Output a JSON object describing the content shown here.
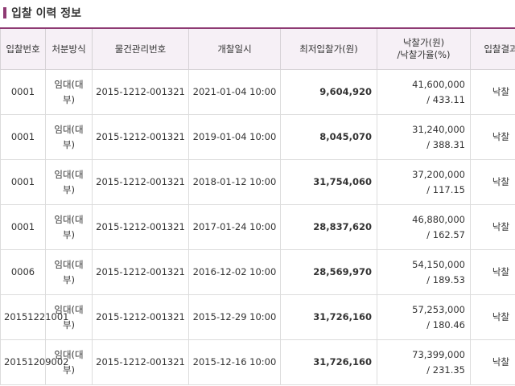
{
  "section": {
    "title": "입찰 이력 정보"
  },
  "table": {
    "headers": {
      "bid_no": "입찰번호",
      "disposal": "처분방식",
      "item_no": "물건관리번호",
      "open_date": "개찰일시",
      "min_price": "최저입찰가(원)",
      "win_price_line1": "낙찰가(원)",
      "win_price_line2": "/낙찰가율(%)",
      "result": "입찰결과"
    },
    "rows": [
      {
        "bid_no": "0001",
        "disposal": "임대(대부)",
        "item_no": "2015-1212-001321",
        "open_date": "2021-01-04 10:00",
        "min_price": "9,604,920",
        "win_price": "41,600,000",
        "win_rate": "/ 433.11",
        "result": "낙찰"
      },
      {
        "bid_no": "0001",
        "disposal": "임대(대부)",
        "item_no": "2015-1212-001321",
        "open_date": "2019-01-04 10:00",
        "min_price": "8,045,070",
        "win_price": "31,240,000",
        "win_rate": "/ 388.31",
        "result": "낙찰"
      },
      {
        "bid_no": "0001",
        "disposal": "임대(대부)",
        "item_no": "2015-1212-001321",
        "open_date": "2018-01-12 10:00",
        "min_price": "31,754,060",
        "win_price": "37,200,000",
        "win_rate": "/ 117.15",
        "result": "낙찰"
      },
      {
        "bid_no": "0001",
        "disposal": "임대(대부)",
        "item_no": "2015-1212-001321",
        "open_date": "2017-01-24 10:00",
        "min_price": "28,837,620",
        "win_price": "46,880,000",
        "win_rate": "/ 162.57",
        "result": "낙찰"
      },
      {
        "bid_no": "0006",
        "disposal": "임대(대부)",
        "item_no": "2015-1212-001321",
        "open_date": "2016-12-02 10:00",
        "min_price": "28,569,970",
        "win_price": "54,150,000",
        "win_rate": "/ 189.53",
        "result": "낙찰"
      },
      {
        "bid_no": "20151221001",
        "disposal": "임대(대부)",
        "item_no": "2015-1212-001321",
        "open_date": "2015-12-29 10:00",
        "min_price": "31,726,160",
        "win_price": "57,253,000",
        "win_rate": "/ 180.46",
        "result": "낙찰"
      },
      {
        "bid_no": "20151209002",
        "disposal": "임대(대부)",
        "item_no": "2015-1212-001321",
        "open_date": "2015-12-16 10:00",
        "min_price": "31,726,160",
        "win_price": "73,399,000",
        "win_rate": "/ 231.35",
        "result": "낙찰"
      }
    ]
  }
}
